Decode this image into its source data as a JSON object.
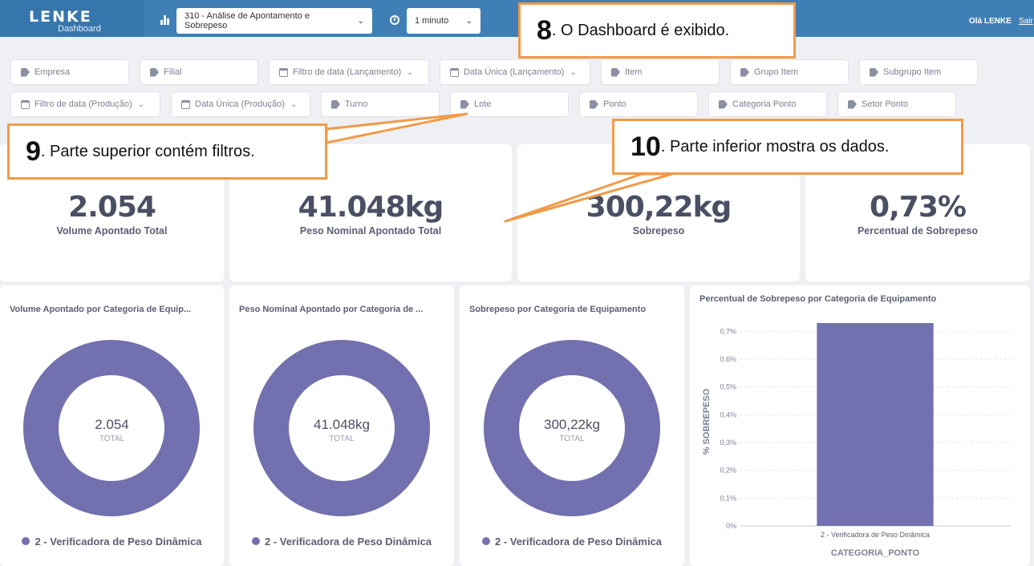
{
  "header": {
    "logo_text": "LENKE",
    "logo_sub": "Dashboard",
    "dashboard_select": "310 - Análise de Apontamento e Sobrepeso",
    "refresh_select": "1 minuto",
    "greeting": "Olá LENKE",
    "logout": "Sair"
  },
  "filters": {
    "row1": [
      "Empresa",
      "Filial",
      "Filtro de data (Lançamento)",
      "Data Única (Lançamento)",
      "Item",
      "Grupo Item",
      "Subgrupo Item"
    ],
    "row2": [
      "Filtro de data (Produção)",
      "Data Única (Produção)",
      "Turno",
      "Lote",
      "Ponto",
      "Categoria Ponto",
      "Setor Ponto"
    ]
  },
  "kpis": [
    {
      "value": "2.054",
      "label": "Volume Apontado Total"
    },
    {
      "value": "41.048kg",
      "label": "Peso Nominal Apontado Total"
    },
    {
      "value": "300,22kg",
      "label": "Sobrepeso"
    },
    {
      "value": "0,73%",
      "label": "Percentual de Sobrepeso"
    }
  ],
  "donuts": [
    {
      "title": "Volume Apontado por Categoria de Equip...",
      "value": "2.054",
      "total_label": "TOTAL",
      "legend": "2 - Verificadora de Peso Dinâmica"
    },
    {
      "title": "Peso Nominal Apontado por Categoria de ...",
      "value": "41.048kg",
      "total_label": "TOTAL",
      "legend": "2 - Verificadora de Peso Dinâmica"
    },
    {
      "title": "Sobrepeso por Categoria de Equipamento",
      "value": "300,22kg",
      "total_label": "TOTAL",
      "legend": "2 - Verificadora de Peso Dinâmica"
    }
  ],
  "colors": {
    "series": "#7270ae",
    "topbar": "#3f7fb5",
    "callout_border": "#f19a48"
  },
  "chart_data": {
    "type": "bar",
    "title": "Percentual de Sobrepeso por Categoria de Equipamento",
    "categories": [
      "2 - Verificadora de Peso Dinâmica"
    ],
    "values": [
      0.73
    ],
    "xlabel": "CATEGORIA_PONTO",
    "ylabel": "% SOBREPESO",
    "ylim": [
      0,
      0.75
    ],
    "yticks": [
      "0%",
      "0,1%",
      "0,2%",
      "0,3%",
      "0,4%",
      "0,5%",
      "0,6%",
      "0,7%"
    ],
    "grid": true
  },
  "callouts": [
    {
      "num": "8",
      "text": ". O Dashboard é exibido."
    },
    {
      "num": "9",
      "text": ". Parte superior contém filtros."
    },
    {
      "num": "10",
      "text": ". Parte inferior mostra os dados."
    }
  ]
}
